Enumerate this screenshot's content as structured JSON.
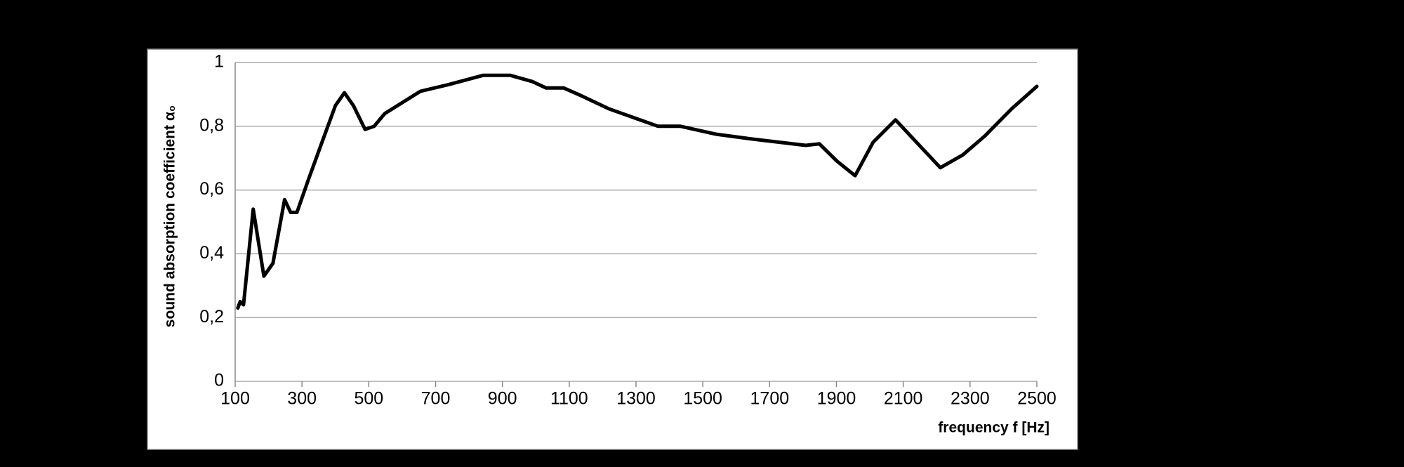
{
  "chart_data": {
    "type": "line",
    "x_label": "frequency f [Hz]",
    "y_label": "sound absorption coefficient α₀",
    "x": [
      108,
      115,
      125,
      154,
      186,
      213,
      248,
      266,
      285,
      320,
      360,
      400,
      427,
      454,
      489,
      516,
      548,
      655,
      736,
      843,
      923,
      990,
      1031,
      1084,
      1138,
      1218,
      1299,
      1366,
      1433,
      1540,
      1648,
      1728,
      1808,
      1849,
      1902,
      1956,
      2010,
      2077,
      2144,
      2211,
      2278,
      2345,
      2425,
      2500
    ],
    "series": [
      {
        "color": "#000000",
        "values": [
          0.23,
          0.25,
          0.24,
          0.54,
          0.33,
          0.37,
          0.57,
          0.53,
          0.53,
          0.635,
          0.75,
          0.865,
          0.905,
          0.865,
          0.79,
          0.8,
          0.84,
          0.91,
          0.93,
          0.96,
          0.96,
          0.94,
          0.92,
          0.92,
          0.895,
          0.855,
          0.825,
          0.8,
          0.8,
          0.775,
          0.76,
          0.75,
          0.74,
          0.745,
          0.69,
          0.645,
          0.75,
          0.82,
          0.745,
          0.67,
          0.71,
          0.77,
          0.855,
          0.925
        ]
      }
    ],
    "xlim": [
      100,
      2500
    ],
    "xticks": [
      100,
      300,
      500,
      700,
      900,
      1100,
      1300,
      1500,
      1700,
      1900,
      2100,
      2300,
      2500
    ],
    "ylim": [
      0,
      1
    ],
    "yticks": [
      0,
      {
        "value": 0.2,
        "label": "0,2"
      },
      {
        "value": 0.4,
        "label": "0,4"
      },
      {
        "value": 0.6,
        "label": "0,6"
      },
      {
        "value": 0.8,
        "label": "0,8"
      },
      1
    ],
    "grid": true
  }
}
